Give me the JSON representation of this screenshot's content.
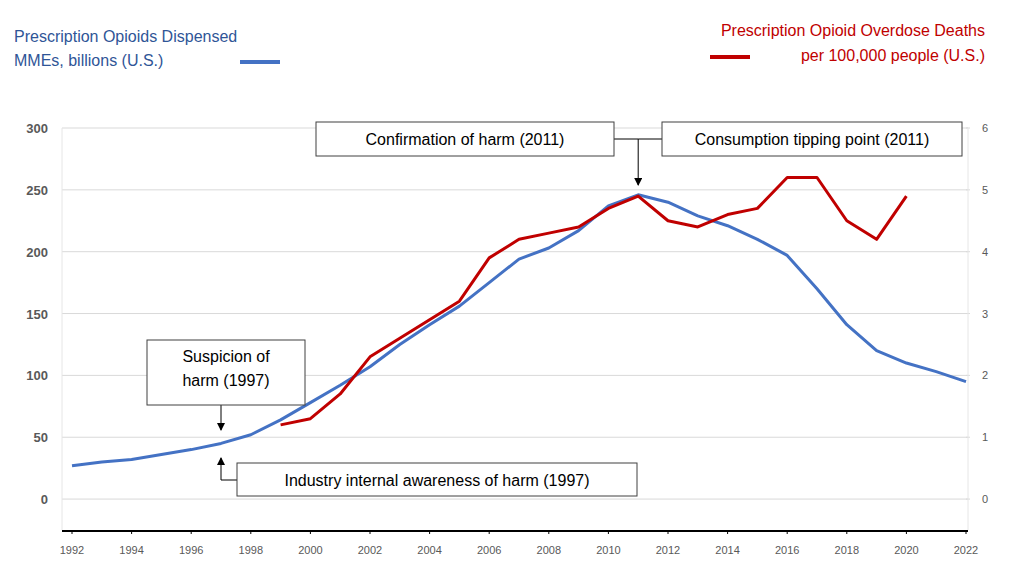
{
  "chart_data": {
    "type": "line",
    "y_label": "MMEs, billions (U.S.)",
    "y2_label": "per 100,000 people (U.S.)",
    "x": [
      1992,
      1993,
      1994,
      1995,
      1996,
      1997,
      1998,
      1999,
      2000,
      2001,
      2002,
      2003,
      2004,
      2005,
      2006,
      2007,
      2008,
      2009,
      2010,
      2011,
      2012,
      2013,
      2014,
      2015,
      2016,
      2017,
      2018,
      2019,
      2020,
      2021,
      2022
    ],
    "xlim": [
      1992,
      2022
    ],
    "xticks": [
      1992,
      1994,
      1996,
      1998,
      2000,
      2002,
      2004,
      2006,
      2008,
      2010,
      2012,
      2014,
      2016,
      2018,
      2020,
      2022
    ],
    "ylim": [
      -25,
      300
    ],
    "yticks": [
      0,
      50,
      100,
      150,
      200,
      250,
      300
    ],
    "y2lim": [
      -0.5,
      6
    ],
    "y2ticks": [
      0,
      1,
      2,
      3,
      4,
      5,
      6
    ],
    "grid": true,
    "legend": "top",
    "series": [
      {
        "name": "Prescription Opioids Dispensed",
        "color": "#4472c4",
        "values": [
          27,
          30,
          32,
          36,
          40,
          45,
          52,
          64,
          78,
          92,
          107,
          125,
          141,
          156,
          175,
          194,
          203,
          217,
          237,
          246,
          240,
          229,
          221,
          210,
          197,
          170,
          141,
          120,
          110,
          103,
          95
        ]
      },
      {
        "name": "Prescription Opioid Overdose Deaths",
        "color": "#c00000",
        "axis": "y2",
        "values": [
          null,
          null,
          null,
          null,
          null,
          null,
          null,
          1.2,
          1.3,
          1.7,
          2.3,
          2.6,
          2.9,
          3.2,
          3.9,
          4.2,
          4.3,
          4.4,
          4.7,
          4.9,
          4.5,
          4.4,
          4.6,
          4.7,
          5.2,
          5.2,
          4.5,
          4.2,
          4.9,
          null,
          null
        ]
      }
    ],
    "annotations": [
      {
        "text": "Confirmation of harm (2011)",
        "x": 2011
      },
      {
        "text": "Consumption tipping point (2011)",
        "x": 2011
      },
      {
        "text": "Suspicion of harm (1997)",
        "x": 1997
      },
      {
        "text": "Industry internal awareness of harm (1997)",
        "x": 1997
      }
    ]
  }
}
